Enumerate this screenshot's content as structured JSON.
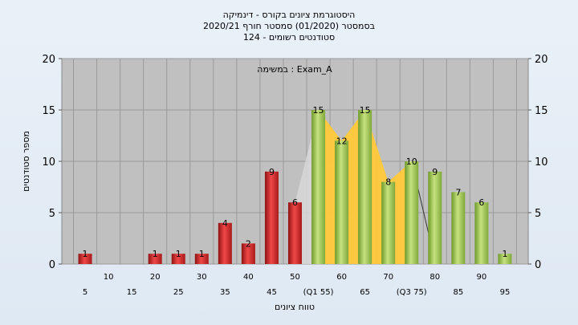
{
  "chart_data": {
    "type": "bar",
    "title_lines": [
      "היסטוגרמת ציונים בקורס - דינמיקה",
      "בסמסטר   (01/2020)  סמסטר חורף  2020/21",
      "סטודנטים רשומים - 124"
    ],
    "annotation": "במשימה : Exam_A",
    "xlabel": "טווח ציונים",
    "ylabel": "מספר סטודנטים",
    "ylim": [
      0,
      20
    ],
    "yticks": [
      0,
      5,
      10,
      15,
      20
    ],
    "grid": true,
    "categories": [
      "5",
      "10",
      "15",
      "20",
      "25",
      "30",
      "35",
      "40",
      "45",
      "50",
      "(Q1 55)",
      "60",
      "65",
      "70",
      "(Q3 75)",
      "80",
      "85",
      "90",
      "95"
    ],
    "values": [
      1,
      0,
      0,
      1,
      1,
      1,
      4,
      2,
      9,
      6,
      15,
      12,
      15,
      8,
      10,
      9,
      7,
      6,
      1
    ],
    "data_labels": [
      "1",
      "",
      "",
      "1",
      "1",
      "1",
      "4",
      "2",
      "9",
      "6",
      "15",
      "12",
      "15",
      "8",
      "10",
      "9",
      "7",
      "6",
      "1"
    ],
    "bar_groups": [
      "red",
      "red",
      "red",
      "red",
      "red",
      "red",
      "red",
      "red",
      "red",
      "red",
      "green",
      "green",
      "green",
      "green",
      "green",
      "green",
      "green",
      "green",
      "green"
    ],
    "colors": {
      "red": "#d42a2a",
      "green": "#9dc552",
      "iqr_fill": "#ffc93a",
      "plot_bg": "#c0c0c0",
      "page_bg": "#e4edf6"
    }
  }
}
